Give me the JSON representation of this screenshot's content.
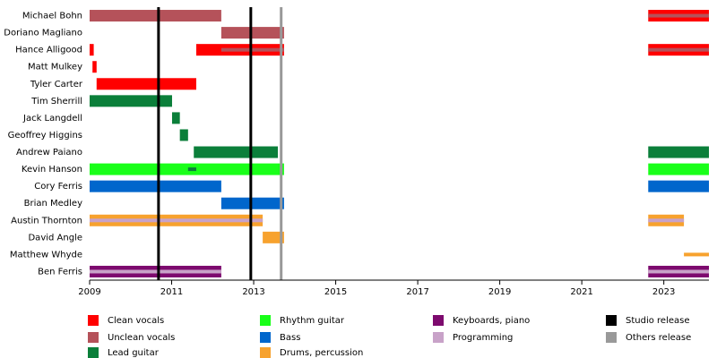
{
  "chart_data": {
    "type": "timeline",
    "xlim": [
      2009,
      2024.1
    ],
    "xticks": [
      2009,
      2011,
      2013,
      2015,
      2017,
      2019,
      2021,
      2023
    ],
    "roles": [
      {
        "name": "Clean vocals",
        "color": "#ff0000"
      },
      {
        "name": "Unclean vocals",
        "color": "#b5525a"
      },
      {
        "name": "Lead guitar",
        "color": "#0b7f3a"
      },
      {
        "name": "Rhythm guitar",
        "color": "#19ff19"
      },
      {
        "name": "Bass",
        "color": "#0066cc"
      },
      {
        "name": "Drums, percussion",
        "color": "#f7a22e"
      },
      {
        "name": "Keyboards, piano",
        "color": "#7d0a6e"
      },
      {
        "name": "Programming",
        "color": "#c8a2c8"
      }
    ],
    "release_types": [
      {
        "name": "Studio release",
        "color": "#000000"
      },
      {
        "name": "Others release",
        "color": "#999999"
      }
    ],
    "releases": [
      {
        "type": "Studio release",
        "date": 2010.68
      },
      {
        "type": "Studio release",
        "date": 2012.93
      },
      {
        "type": "Others release",
        "date": 2013.67
      }
    ],
    "members": [
      {
        "name": "Michael Bohn",
        "spans": [
          {
            "role": "Unclean vocals",
            "start": 2009,
            "end": 2012.21,
            "style": "bar"
          },
          {
            "role": "Clean vocals",
            "start": 2022.62,
            "end": 2024.1,
            "style": "bar"
          },
          {
            "role": "Unclean vocals",
            "start": 2022.62,
            "end": 2024.1,
            "style": "stripe"
          }
        ]
      },
      {
        "name": "Doriano Magliano",
        "spans": [
          {
            "role": "Unclean vocals",
            "start": 2012.21,
            "end": 2013.74,
            "style": "bar"
          }
        ]
      },
      {
        "name": "Hance Alligood",
        "spans": [
          {
            "role": "Clean vocals",
            "start": 2009,
            "end": 2009.1,
            "style": "bar"
          },
          {
            "role": "Clean vocals",
            "start": 2011.6,
            "end": 2013.74,
            "style": "bar"
          },
          {
            "role": "Unclean vocals",
            "start": 2012.21,
            "end": 2013.74,
            "style": "stripe"
          },
          {
            "role": "Clean vocals",
            "start": 2022.62,
            "end": 2024.1,
            "style": "bar"
          },
          {
            "role": "Unclean vocals",
            "start": 2022.62,
            "end": 2024.1,
            "style": "stripe"
          }
        ]
      },
      {
        "name": "Matt Mulkey",
        "spans": [
          {
            "role": "Clean vocals",
            "start": 2009.07,
            "end": 2009.17,
            "style": "bar"
          }
        ]
      },
      {
        "name": "Tyler Carter",
        "spans": [
          {
            "role": "Clean vocals",
            "start": 2009.17,
            "end": 2011.6,
            "style": "bar"
          }
        ]
      },
      {
        "name": "Tim Sherrill",
        "spans": [
          {
            "role": "Lead guitar",
            "start": 2009,
            "end": 2011.01,
            "style": "bar"
          }
        ]
      },
      {
        "name": "Jack Langdell",
        "spans": [
          {
            "role": "Lead guitar",
            "start": 2011.01,
            "end": 2011.2,
            "style": "bar"
          }
        ]
      },
      {
        "name": "Geoffrey Higgins",
        "spans": [
          {
            "role": "Lead guitar",
            "start": 2011.2,
            "end": 2011.4,
            "style": "bar"
          }
        ]
      },
      {
        "name": "Andrew Paiano",
        "spans": [
          {
            "role": "Lead guitar",
            "start": 2011.54,
            "end": 2013.59,
            "style": "bar"
          },
          {
            "role": "Lead guitar",
            "start": 2022.62,
            "end": 2024.1,
            "style": "bar"
          }
        ]
      },
      {
        "name": "Kevin Hanson",
        "spans": [
          {
            "role": "Rhythm guitar",
            "start": 2009,
            "end": 2013.74,
            "style": "bar"
          },
          {
            "role": "Lead guitar",
            "start": 2011.4,
            "end": 2011.6,
            "style": "stripe"
          },
          {
            "role": "Rhythm guitar",
            "start": 2022.62,
            "end": 2024.1,
            "style": "bar"
          }
        ]
      },
      {
        "name": "Cory Ferris",
        "spans": [
          {
            "role": "Bass",
            "start": 2009,
            "end": 2012.21,
            "style": "bar"
          },
          {
            "role": "Bass",
            "start": 2022.62,
            "end": 2024.1,
            "style": "bar"
          }
        ]
      },
      {
        "name": "Brian Medley",
        "spans": [
          {
            "role": "Bass",
            "start": 2012.21,
            "end": 2013.74,
            "style": "bar"
          }
        ]
      },
      {
        "name": "Austin Thornton",
        "spans": [
          {
            "role": "Drums, percussion",
            "start": 2009,
            "end": 2013.22,
            "style": "bar"
          },
          {
            "role": "Programming",
            "start": 2009,
            "end": 2013.22,
            "style": "stripe"
          },
          {
            "role": "Drums, percussion",
            "start": 2022.62,
            "end": 2023.49,
            "style": "bar"
          },
          {
            "role": "Programming",
            "start": 2022.62,
            "end": 2023.49,
            "style": "stripe"
          }
        ]
      },
      {
        "name": "David Angle",
        "spans": [
          {
            "role": "Drums, percussion",
            "start": 2013.22,
            "end": 2013.74,
            "style": "bar"
          }
        ]
      },
      {
        "name": "Matthew Whyde",
        "spans": [
          {
            "role": "Drums, percussion",
            "start": 2023.49,
            "end": 2024.1,
            "style": "stripe"
          }
        ]
      },
      {
        "name": "Ben Ferris",
        "spans": [
          {
            "role": "Keyboards, piano",
            "start": 2009,
            "end": 2012.21,
            "style": "bar"
          },
          {
            "role": "Programming",
            "start": 2009,
            "end": 2012.21,
            "style": "stripe"
          },
          {
            "role": "Keyboards, piano",
            "start": 2022.62,
            "end": 2024.1,
            "style": "bar"
          },
          {
            "role": "Programming",
            "start": 2022.62,
            "end": 2024.1,
            "style": "stripe"
          }
        ]
      }
    ]
  }
}
